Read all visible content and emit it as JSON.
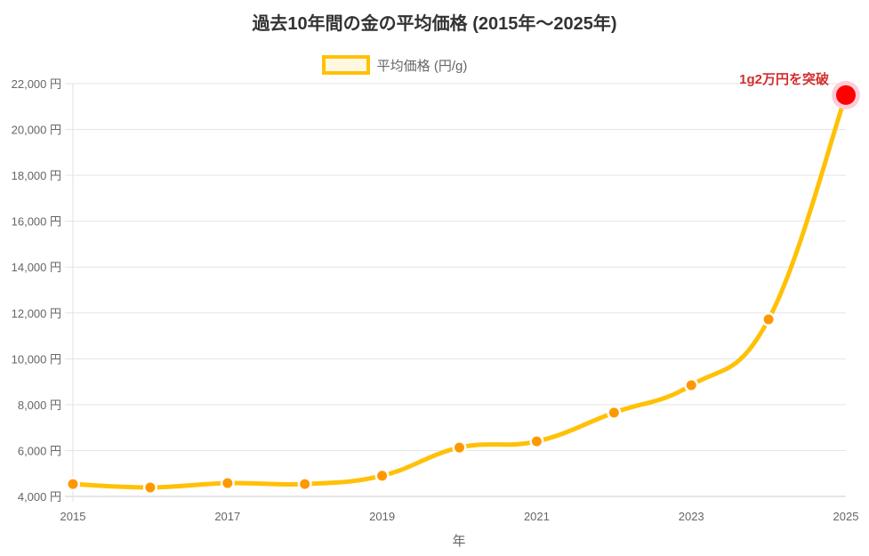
{
  "chart_data": {
    "type": "line",
    "title": "過去10年間の金の平均価格 (2015年～2025年)",
    "xlabel": "年",
    "ylabel": "",
    "categories": [
      "2015",
      "2016",
      "2017",
      "2018",
      "2019",
      "2020",
      "2021",
      "2022",
      "2023",
      "2024",
      "2025"
    ],
    "x_tick_labels": [
      "2015",
      "2017",
      "2019",
      "2021",
      "2023",
      "2025"
    ],
    "series": [
      {
        "name": "平均価格 (円/g)",
        "values": [
          4540,
          4390,
          4580,
          4540,
          4900,
          6130,
          6400,
          7650,
          8850,
          11720,
          21500
        ],
        "line_color": "#FFC107",
        "point_color": "#FF9800",
        "fill_color": "#FFF8E1"
      }
    ],
    "y_ticks": [
      4000,
      6000,
      8000,
      10000,
      12000,
      14000,
      16000,
      18000,
      20000,
      22000
    ],
    "y_tick_labels": [
      "4,000 円",
      "6,000 円",
      "8,000 円",
      "10,000 円",
      "12,000 円",
      "14,000 円",
      "16,000 円",
      "18,000 円",
      "20,000 円",
      "22,000 円"
    ],
    "ylim": [
      4000,
      22000
    ],
    "grid": true,
    "legend_position": "top",
    "annotations": [
      {
        "text": "1g2万円を突破",
        "x": "2025",
        "y": 21500,
        "color": "#D32F2F",
        "point_color": "#FF0000",
        "halo_color": "#FFCDD9"
      }
    ]
  },
  "title": "過去10年間の金の平均価格 (2015年～2025年)",
  "legend": {
    "label": "平均価格 (円/g)"
  },
  "axis": {
    "x_label": "年"
  },
  "annotation": {
    "text": "1g2万円を突破"
  }
}
